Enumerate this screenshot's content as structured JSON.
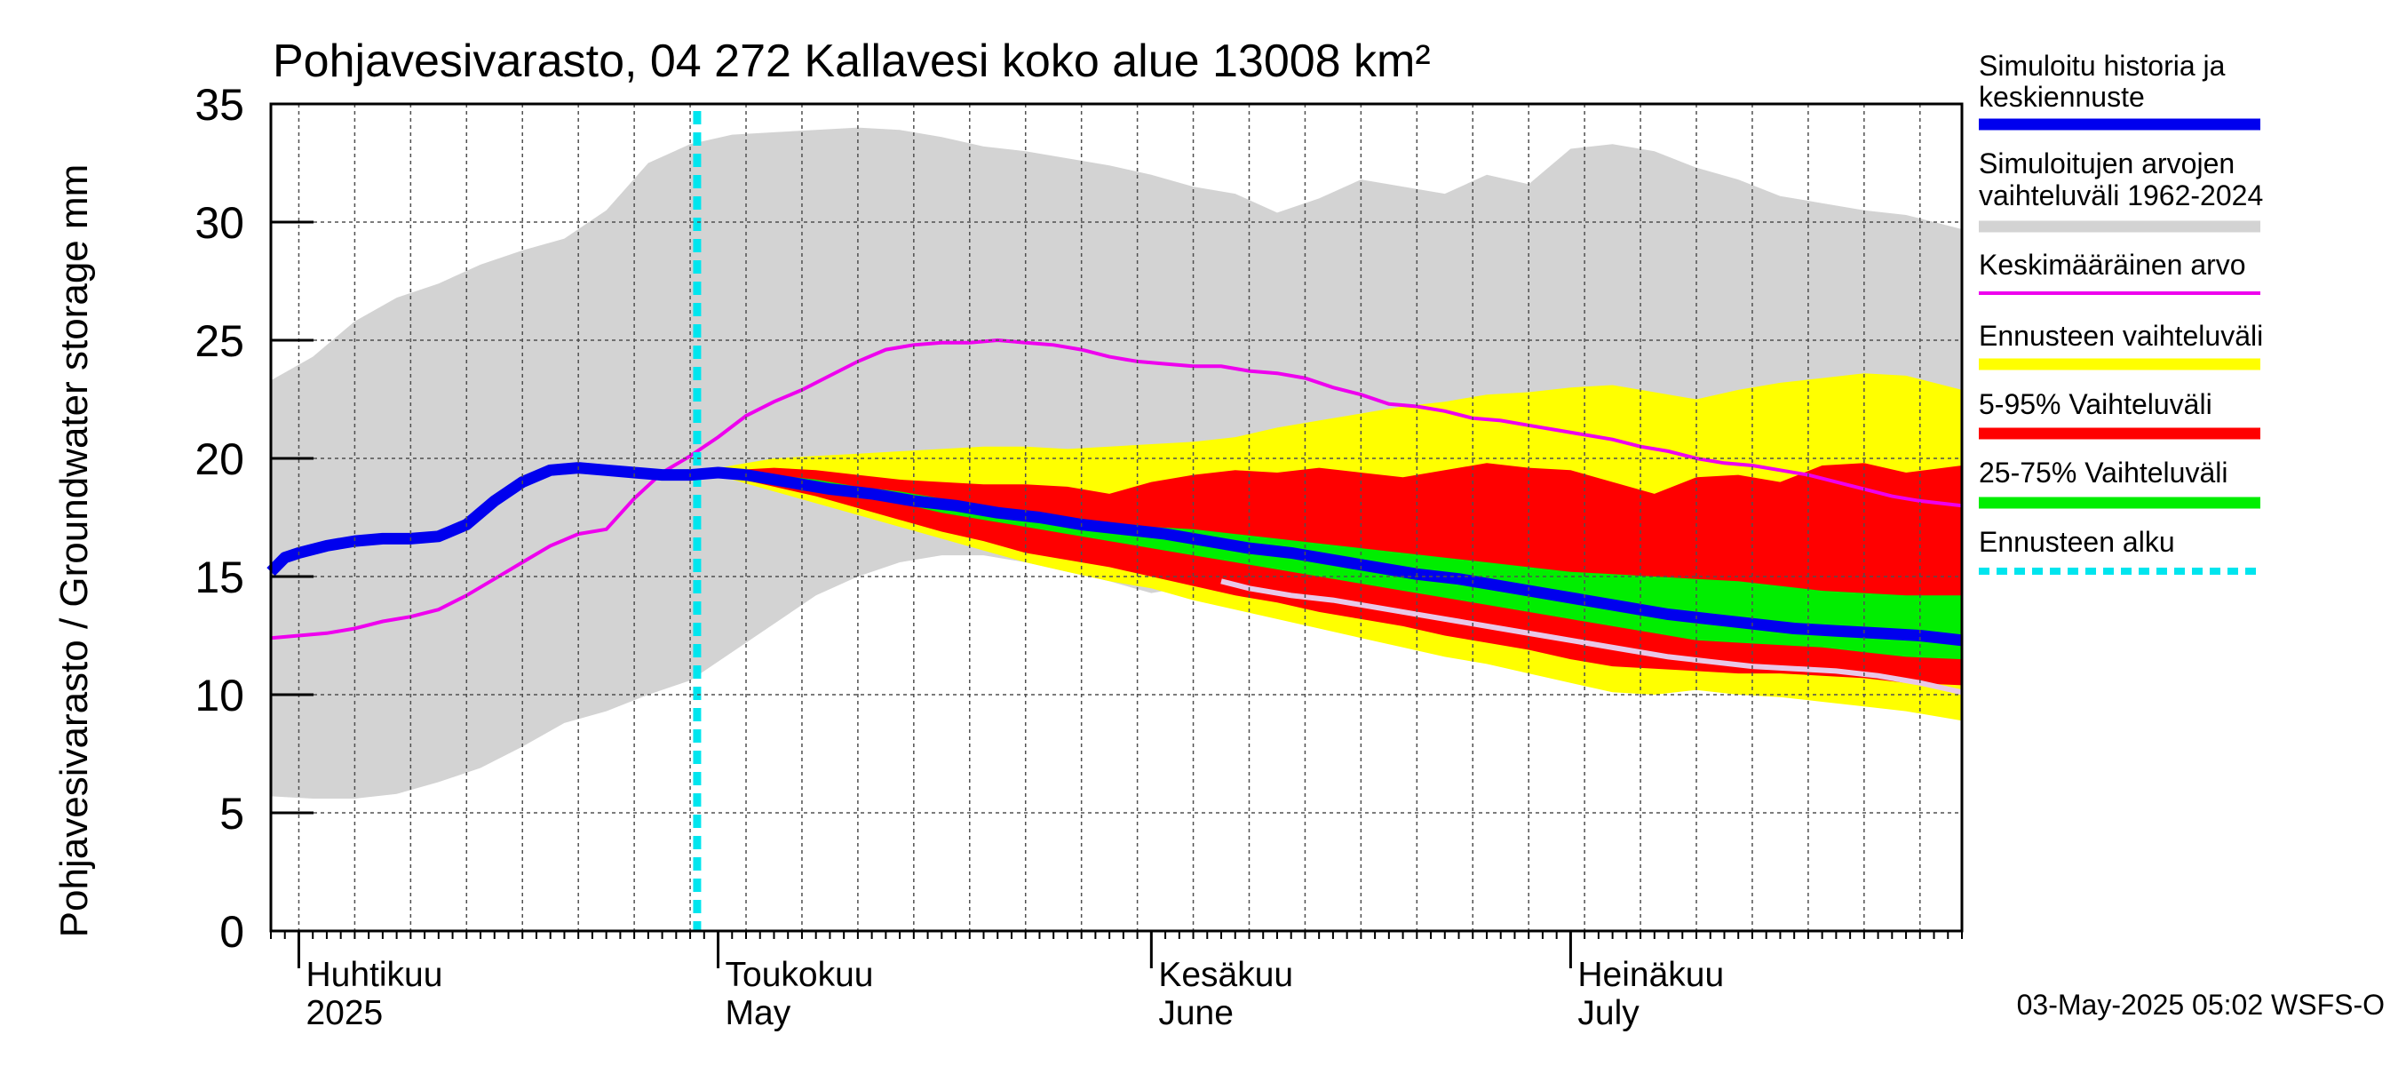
{
  "chart_data": {
    "type": "area",
    "title": "Pohjavesivarasto, 04 272 Kallavesi koko alue 13008 km²",
    "ylabel": "Pohjavesivarasto / Groundwater storage   mm",
    "ylim": [
      0,
      35
    ],
    "yticks": [
      0,
      5,
      10,
      15,
      20,
      25,
      30,
      35
    ],
    "xlim_days": [
      0,
      121
    ],
    "x_unit": "days since 2025-03-30",
    "month_labels": [
      {
        "day": 2,
        "line1": "Huhtikuu",
        "line2": "2025"
      },
      {
        "day": 32,
        "line1": "Toukokuu",
        "line2": "May"
      },
      {
        "day": 63,
        "line1": "Kesäkuu",
        "line2": "June"
      },
      {
        "day": 93,
        "line1": "Heinäkuu",
        "line2": "July"
      }
    ],
    "month_boundaries": [
      2,
      32,
      63,
      93
    ],
    "forecast_start_day": 30.5,
    "grid": true,
    "legend_position": "right",
    "timestamp": "03-May-2025 05:02 WSFS-O",
    "colors": {
      "history": "#0000ee",
      "range": "#d3d3d3",
      "mean": "#ee00ee",
      "forecast_range": "#ffff00",
      "p5_95": "#ff0000",
      "p25_75": "#00ee00",
      "forecast_start": "#00e5ee",
      "lower_line": "#e8c8e8"
    },
    "legend": [
      {
        "key": "history",
        "lines": [
          "Simuloitu historia ja",
          "keskiennuste"
        ],
        "style": "thick"
      },
      {
        "key": "range",
        "lines": [
          "Simuloitujen arvojen",
          "vaihteluväli 1962-2024"
        ],
        "style": "thick"
      },
      {
        "key": "mean",
        "lines": [
          "Keskimääräinen arvo"
        ],
        "style": "thin"
      },
      {
        "key": "forecast_range",
        "lines": [
          "Ennusteen vaihteluväli"
        ],
        "style": "thick"
      },
      {
        "key": "p5_95",
        "lines": [
          "5-95% Vaihteluväli"
        ],
        "style": "thick"
      },
      {
        "key": "p25_75",
        "lines": [
          "25-75% Vaihteluväli"
        ],
        "style": "thick"
      },
      {
        "key": "forecast_start",
        "lines": [
          "Ennusteen alku"
        ],
        "style": "dotted"
      }
    ],
    "series": {
      "range_upper": {
        "x": [
          0,
          3,
          6,
          9,
          12,
          15,
          18,
          21,
          24,
          27,
          30,
          33,
          36,
          39,
          42,
          45,
          48,
          51,
          54,
          57,
          60,
          63,
          66,
          69,
          72,
          75,
          78,
          81,
          84,
          87,
          90,
          93,
          96,
          99,
          102,
          105,
          108,
          111,
          114,
          117,
          121
        ],
        "y": [
          23.3,
          24.3,
          25.8,
          26.8,
          27.4,
          28.2,
          28.8,
          29.3,
          30.5,
          32.5,
          33.3,
          33.7,
          33.8,
          33.9,
          34.0,
          33.9,
          33.6,
          33.2,
          33.0,
          32.7,
          32.4,
          32.0,
          31.5,
          31.2,
          30.4,
          31.0,
          31.8,
          31.5,
          31.2,
          32.0,
          31.6,
          33.1,
          33.3,
          33.0,
          32.3,
          31.8,
          31.1,
          30.8,
          30.5,
          30.3,
          29.7
        ]
      },
      "range_lower": {
        "x": [
          0,
          3,
          6,
          9,
          12,
          15,
          18,
          21,
          24,
          27,
          30,
          33,
          36,
          39,
          42,
          45,
          48,
          51,
          54,
          57,
          60,
          63,
          66
        ],
        "y": [
          5.7,
          5.6,
          5.6,
          5.8,
          6.3,
          6.9,
          7.8,
          8.8,
          9.3,
          10.0,
          10.6,
          11.8,
          13.0,
          14.2,
          15.0,
          15.6,
          15.9,
          15.9,
          15.6,
          15.2,
          14.8,
          14.3,
          14.6
        ]
      },
      "mean": {
        "x": [
          0,
          2,
          4,
          6,
          8,
          10,
          12,
          14,
          16,
          18,
          20,
          22,
          24,
          26,
          28,
          30,
          32,
          34,
          36,
          38,
          40,
          42,
          44,
          46,
          48,
          50,
          52,
          54,
          56,
          58,
          60,
          62,
          64,
          66,
          68,
          70,
          72,
          74,
          76,
          78,
          80,
          82,
          84,
          86,
          88,
          90,
          92,
          94,
          96,
          98,
          100,
          102,
          104,
          106,
          108,
          110,
          112,
          114,
          116,
          118,
          121
        ],
        "y": [
          12.4,
          12.5,
          12.6,
          12.8,
          13.1,
          13.3,
          13.6,
          14.2,
          14.9,
          15.6,
          16.3,
          16.8,
          17.0,
          18.3,
          19.4,
          20.1,
          20.9,
          21.8,
          22.4,
          22.9,
          23.5,
          24.1,
          24.6,
          24.8,
          24.9,
          24.9,
          25.0,
          24.9,
          24.8,
          24.6,
          24.3,
          24.1,
          24.0,
          23.9,
          23.9,
          23.7,
          23.6,
          23.4,
          23.0,
          22.7,
          22.3,
          22.2,
          22.0,
          21.7,
          21.6,
          21.4,
          21.2,
          21.0,
          20.8,
          20.5,
          20.3,
          20.0,
          19.8,
          19.7,
          19.5,
          19.3,
          19.0,
          18.7,
          18.4,
          18.2,
          18.0
        ]
      },
      "history": {
        "x": [
          0,
          1,
          2,
          4,
          6,
          8,
          10,
          12,
          14,
          16,
          18,
          20,
          22,
          24,
          26,
          28,
          30,
          32,
          34,
          36,
          38,
          40,
          43,
          46,
          49,
          52,
          55,
          58,
          61,
          64,
          67,
          70,
          73,
          76,
          79,
          82,
          85,
          88,
          91,
          94,
          97,
          100,
          103,
          106,
          109,
          112,
          115,
          118,
          121
        ],
        "y": [
          15.2,
          15.8,
          16.0,
          16.3,
          16.5,
          16.6,
          16.6,
          16.7,
          17.2,
          18.2,
          19.0,
          19.5,
          19.6,
          19.5,
          19.4,
          19.3,
          19.3,
          19.4,
          19.3,
          19.1,
          18.9,
          18.7,
          18.5,
          18.2,
          18.0,
          17.7,
          17.5,
          17.2,
          17.0,
          16.8,
          16.5,
          16.2,
          16.0,
          15.7,
          15.4,
          15.1,
          14.9,
          14.6,
          14.3,
          14.0,
          13.7,
          13.4,
          13.2,
          13.0,
          12.8,
          12.7,
          12.6,
          12.5,
          12.3
        ]
      },
      "fc_upper": {
        "x": [
          30.5,
          33,
          36,
          39,
          42,
          45,
          48,
          51,
          54,
          57,
          60,
          63,
          66,
          69,
          72,
          75,
          78,
          81,
          84,
          87,
          90,
          93,
          96,
          99,
          102,
          105,
          108,
          111,
          114,
          117,
          121
        ],
        "y": [
          19.4,
          19.7,
          20.0,
          20.1,
          20.2,
          20.3,
          20.4,
          20.5,
          20.5,
          20.4,
          20.5,
          20.6,
          20.7,
          20.9,
          21.3,
          21.6,
          21.9,
          22.2,
          22.4,
          22.7,
          22.8,
          23.0,
          23.1,
          22.8,
          22.5,
          22.9,
          23.2,
          23.4,
          23.6,
          23.5,
          22.9
        ]
      },
      "fc_lower": {
        "x": [
          30.5,
          33,
          36,
          39,
          42,
          45,
          48,
          51,
          54,
          57,
          60,
          63,
          66,
          69,
          72,
          75,
          78,
          81,
          84,
          87,
          90,
          93,
          96,
          99,
          102,
          105,
          108,
          111,
          114,
          117,
          121
        ],
        "y": [
          19.4,
          19.1,
          18.6,
          18.1,
          17.6,
          17.1,
          16.6,
          16.1,
          15.6,
          15.2,
          14.8,
          14.5,
          14.0,
          13.6,
          13.2,
          12.8,
          12.4,
          12.0,
          11.6,
          11.3,
          10.9,
          10.5,
          10.1,
          10.0,
          10.2,
          10.0,
          9.9,
          9.7,
          9.5,
          9.3,
          8.9
        ]
      },
      "p95": {
        "x": [
          30.5,
          33,
          36,
          39,
          42,
          45,
          48,
          51,
          54,
          57,
          60,
          63,
          66,
          69,
          72,
          75,
          78,
          81,
          84,
          87,
          90,
          93,
          96,
          99,
          102,
          105,
          108,
          111,
          114,
          117,
          121
        ],
        "y": [
          19.4,
          19.5,
          19.6,
          19.5,
          19.3,
          19.1,
          19.0,
          18.9,
          18.9,
          18.8,
          18.5,
          19.0,
          19.3,
          19.5,
          19.4,
          19.6,
          19.4,
          19.2,
          19.5,
          19.8,
          19.6,
          19.5,
          19.0,
          18.5,
          19.2,
          19.3,
          19.0,
          19.7,
          19.8,
          19.4,
          19.7
        ]
      },
      "p5": {
        "x": [
          30.5,
          33,
          36,
          39,
          42,
          45,
          48,
          51,
          54,
          57,
          60,
          63,
          66,
          69,
          72,
          75,
          78,
          81,
          84,
          87,
          90,
          93,
          96,
          99,
          102,
          105,
          108,
          111,
          114,
          117,
          121
        ],
        "y": [
          19.4,
          19.2,
          18.8,
          18.4,
          17.9,
          17.4,
          16.9,
          16.5,
          16.0,
          15.7,
          15.4,
          15.0,
          14.6,
          14.2,
          13.9,
          13.5,
          13.2,
          12.9,
          12.5,
          12.2,
          11.9,
          11.5,
          11.2,
          11.1,
          11.0,
          10.9,
          10.9,
          10.8,
          10.7,
          10.5,
          10.4
        ]
      },
      "p75": {
        "x": [
          30.5,
          33,
          36,
          39,
          42,
          45,
          48,
          51,
          54,
          57,
          60,
          63,
          66,
          69,
          72,
          75,
          78,
          81,
          84,
          87,
          90,
          93,
          96,
          99,
          102,
          105,
          108,
          111,
          114,
          117,
          121
        ],
        "y": [
          19.4,
          19.4,
          19.3,
          19.1,
          18.8,
          18.6,
          18.3,
          18.0,
          17.8,
          17.5,
          17.3,
          17.1,
          17.0,
          16.8,
          16.6,
          16.4,
          16.2,
          16.0,
          15.8,
          15.6,
          15.4,
          15.2,
          15.1,
          15.0,
          14.9,
          14.8,
          14.6,
          14.4,
          14.3,
          14.2,
          14.2
        ]
      },
      "p25": {
        "x": [
          30.5,
          33,
          36,
          39,
          42,
          45,
          48,
          51,
          54,
          57,
          60,
          63,
          66,
          69,
          72,
          75,
          78,
          81,
          84,
          87,
          90,
          93,
          96,
          99,
          102,
          105,
          108,
          111,
          114,
          117,
          121
        ],
        "y": [
          19.4,
          19.3,
          19.0,
          18.7,
          18.4,
          18.1,
          17.7,
          17.4,
          17.1,
          16.8,
          16.5,
          16.2,
          15.9,
          15.6,
          15.3,
          15.0,
          14.7,
          14.4,
          14.1,
          13.8,
          13.5,
          13.2,
          12.9,
          12.6,
          12.3,
          12.2,
          12.1,
          12.0,
          11.8,
          11.6,
          11.5
        ]
      },
      "lower_line": {
        "x": [
          68,
          70,
          73,
          76,
          79,
          82,
          85,
          88,
          91,
          94,
          97,
          100,
          103,
          106,
          109,
          112,
          115,
          118,
          121
        ],
        "y": [
          14.8,
          14.5,
          14.2,
          14.0,
          13.7,
          13.4,
          13.1,
          12.8,
          12.5,
          12.2,
          11.9,
          11.6,
          11.4,
          11.2,
          11.1,
          11.0,
          10.8,
          10.5,
          10.1
        ]
      }
    }
  }
}
